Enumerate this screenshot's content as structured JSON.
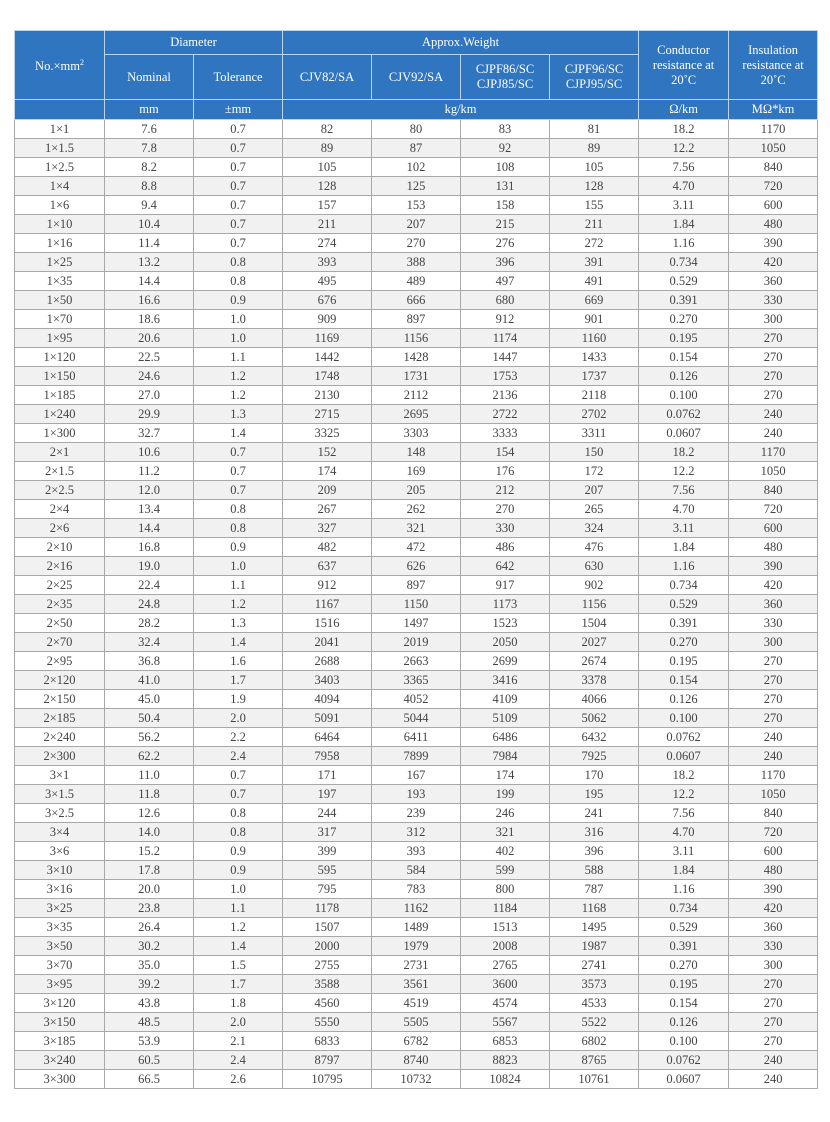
{
  "header": {
    "size": "No.×mm",
    "size_sup": "2",
    "diameter": "Diameter",
    "nominal": "Nominal",
    "tolerance": "Tolerance",
    "weight": "Approx.Weight",
    "w1": "CJV82/SA",
    "w2": "CJV92/SA",
    "w3a": "CJPF86/SC",
    "w3b": "CJPJ85/SC",
    "w4a": "CJPF96/SC",
    "w4b": "CJPJ95/SC",
    "cond": "Conductor resistance at 20˚C",
    "ins": "Insulation resistance at 20˚C",
    "u_nom": "mm",
    "u_tol": "±mm",
    "u_w": "kg/km",
    "u_cond": "Ω/km",
    "u_ins": "MΩ*km"
  },
  "rows": [
    [
      "1×1",
      "7.6",
      "0.7",
      "82",
      "80",
      "83",
      "81",
      "18.2",
      "1170"
    ],
    [
      "1×1.5",
      "7.8",
      "0.7",
      "89",
      "87",
      "92",
      "89",
      "12.2",
      "1050"
    ],
    [
      "1×2.5",
      "8.2",
      "0.7",
      "105",
      "102",
      "108",
      "105",
      "7.56",
      "840"
    ],
    [
      "1×4",
      "8.8",
      "0.7",
      "128",
      "125",
      "131",
      "128",
      "4.70",
      "720"
    ],
    [
      "1×6",
      "9.4",
      "0.7",
      "157",
      "153",
      "158",
      "155",
      "3.11",
      "600"
    ],
    [
      "1×10",
      "10.4",
      "0.7",
      "211",
      "207",
      "215",
      "211",
      "1.84",
      "480"
    ],
    [
      "1×16",
      "11.4",
      "0.7",
      "274",
      "270",
      "276",
      "272",
      "1.16",
      "390"
    ],
    [
      "1×25",
      "13.2",
      "0.8",
      "393",
      "388",
      "396",
      "391",
      "0.734",
      "420"
    ],
    [
      "1×35",
      "14.4",
      "0.8",
      "495",
      "489",
      "497",
      "491",
      "0.529",
      "360"
    ],
    [
      "1×50",
      "16.6",
      "0.9",
      "676",
      "666",
      "680",
      "669",
      "0.391",
      "330"
    ],
    [
      "1×70",
      "18.6",
      "1.0",
      "909",
      "897",
      "912",
      "901",
      "0.270",
      "300"
    ],
    [
      "1×95",
      "20.6",
      "1.0",
      "1169",
      "1156",
      "1174",
      "1160",
      "0.195",
      "270"
    ],
    [
      "1×120",
      "22.5",
      "1.1",
      "1442",
      "1428",
      "1447",
      "1433",
      "0.154",
      "270"
    ],
    [
      "1×150",
      "24.6",
      "1.2",
      "1748",
      "1731",
      "1753",
      "1737",
      "0.126",
      "270"
    ],
    [
      "1×185",
      "27.0",
      "1.2",
      "2130",
      "2112",
      "2136",
      "2118",
      "0.100",
      "270"
    ],
    [
      "1×240",
      "29.9",
      "1.3",
      "2715",
      "2695",
      "2722",
      "2702",
      "0.0762",
      "240"
    ],
    [
      "1×300",
      "32.7",
      "1.4",
      "3325",
      "3303",
      "3333",
      "3311",
      "0.0607",
      "240"
    ],
    [
      "2×1",
      "10.6",
      "0.7",
      "152",
      "148",
      "154",
      "150",
      "18.2",
      "1170"
    ],
    [
      "2×1.5",
      "11.2",
      "0.7",
      "174",
      "169",
      "176",
      "172",
      "12.2",
      "1050"
    ],
    [
      "2×2.5",
      "12.0",
      "0.7",
      "209",
      "205",
      "212",
      "207",
      "7.56",
      "840"
    ],
    [
      "2×4",
      "13.4",
      "0.8",
      "267",
      "262",
      "270",
      "265",
      "4.70",
      "720"
    ],
    [
      "2×6",
      "14.4",
      "0.8",
      "327",
      "321",
      "330",
      "324",
      "3.11",
      "600"
    ],
    [
      "2×10",
      "16.8",
      "0.9",
      "482",
      "472",
      "486",
      "476",
      "1.84",
      "480"
    ],
    [
      "2×16",
      "19.0",
      "1.0",
      "637",
      "626",
      "642",
      "630",
      "1.16",
      "390"
    ],
    [
      "2×25",
      "22.4",
      "1.1",
      "912",
      "897",
      "917",
      "902",
      "0.734",
      "420"
    ],
    [
      "2×35",
      "24.8",
      "1.2",
      "1167",
      "1150",
      "1173",
      "1156",
      "0.529",
      "360"
    ],
    [
      "2×50",
      "28.2",
      "1.3",
      "1516",
      "1497",
      "1523",
      "1504",
      "0.391",
      "330"
    ],
    [
      "2×70",
      "32.4",
      "1.4",
      "2041",
      "2019",
      "2050",
      "2027",
      "0.270",
      "300"
    ],
    [
      "2×95",
      "36.8",
      "1.6",
      "2688",
      "2663",
      "2699",
      "2674",
      "0.195",
      "270"
    ],
    [
      "2×120",
      "41.0",
      "1.7",
      "3403",
      "3365",
      "3416",
      "3378",
      "0.154",
      "270"
    ],
    [
      "2×150",
      "45.0",
      "1.9",
      "4094",
      "4052",
      "4109",
      "4066",
      "0.126",
      "270"
    ],
    [
      "2×185",
      "50.4",
      "2.0",
      "5091",
      "5044",
      "5109",
      "5062",
      "0.100",
      "270"
    ],
    [
      "2×240",
      "56.2",
      "2.2",
      "6464",
      "6411",
      "6486",
      "6432",
      "0.0762",
      "240"
    ],
    [
      "2×300",
      "62.2",
      "2.4",
      "7958",
      "7899",
      "7984",
      "7925",
      "0.0607",
      "240"
    ],
    [
      "3×1",
      "11.0",
      "0.7",
      "171",
      "167",
      "174",
      "170",
      "18.2",
      "1170"
    ],
    [
      "3×1.5",
      "11.8",
      "0.7",
      "197",
      "193",
      "199",
      "195",
      "12.2",
      "1050"
    ],
    [
      "3×2.5",
      "12.6",
      "0.8",
      "244",
      "239",
      "246",
      "241",
      "7.56",
      "840"
    ],
    [
      "3×4",
      "14.0",
      "0.8",
      "317",
      "312",
      "321",
      "316",
      "4.70",
      "720"
    ],
    [
      "3×6",
      "15.2",
      "0.9",
      "399",
      "393",
      "402",
      "396",
      "3.11",
      "600"
    ],
    [
      "3×10",
      "17.8",
      "0.9",
      "595",
      "584",
      "599",
      "588",
      "1.84",
      "480"
    ],
    [
      "3×16",
      "20.0",
      "1.0",
      "795",
      "783",
      "800",
      "787",
      "1.16",
      "390"
    ],
    [
      "3×25",
      "23.8",
      "1.1",
      "1178",
      "1162",
      "1184",
      "1168",
      "0.734",
      "420"
    ],
    [
      "3×35",
      "26.4",
      "1.2",
      "1507",
      "1489",
      "1513",
      "1495",
      "0.529",
      "360"
    ],
    [
      "3×50",
      "30.2",
      "1.4",
      "2000",
      "1979",
      "2008",
      "1987",
      "0.391",
      "330"
    ],
    [
      "3×70",
      "35.0",
      "1.5",
      "2755",
      "2731",
      "2765",
      "2741",
      "0.270",
      "300"
    ],
    [
      "3×95",
      "39.2",
      "1.7",
      "3588",
      "3561",
      "3600",
      "3573",
      "0.195",
      "270"
    ],
    [
      "3×120",
      "43.8",
      "1.8",
      "4560",
      "4519",
      "4574",
      "4533",
      "0.154",
      "270"
    ],
    [
      "3×150",
      "48.5",
      "2.0",
      "5550",
      "5505",
      "5567",
      "5522",
      "0.126",
      "270"
    ],
    [
      "3×185",
      "53.9",
      "2.1",
      "6833",
      "6782",
      "6853",
      "6802",
      "0.100",
      "270"
    ],
    [
      "3×240",
      "60.5",
      "2.4",
      "8797",
      "8740",
      "8823",
      "8765",
      "0.0762",
      "240"
    ],
    [
      "3×300",
      "66.5",
      "2.6",
      "10795",
      "10732",
      "10824",
      "10761",
      "0.0607",
      "240"
    ]
  ]
}
